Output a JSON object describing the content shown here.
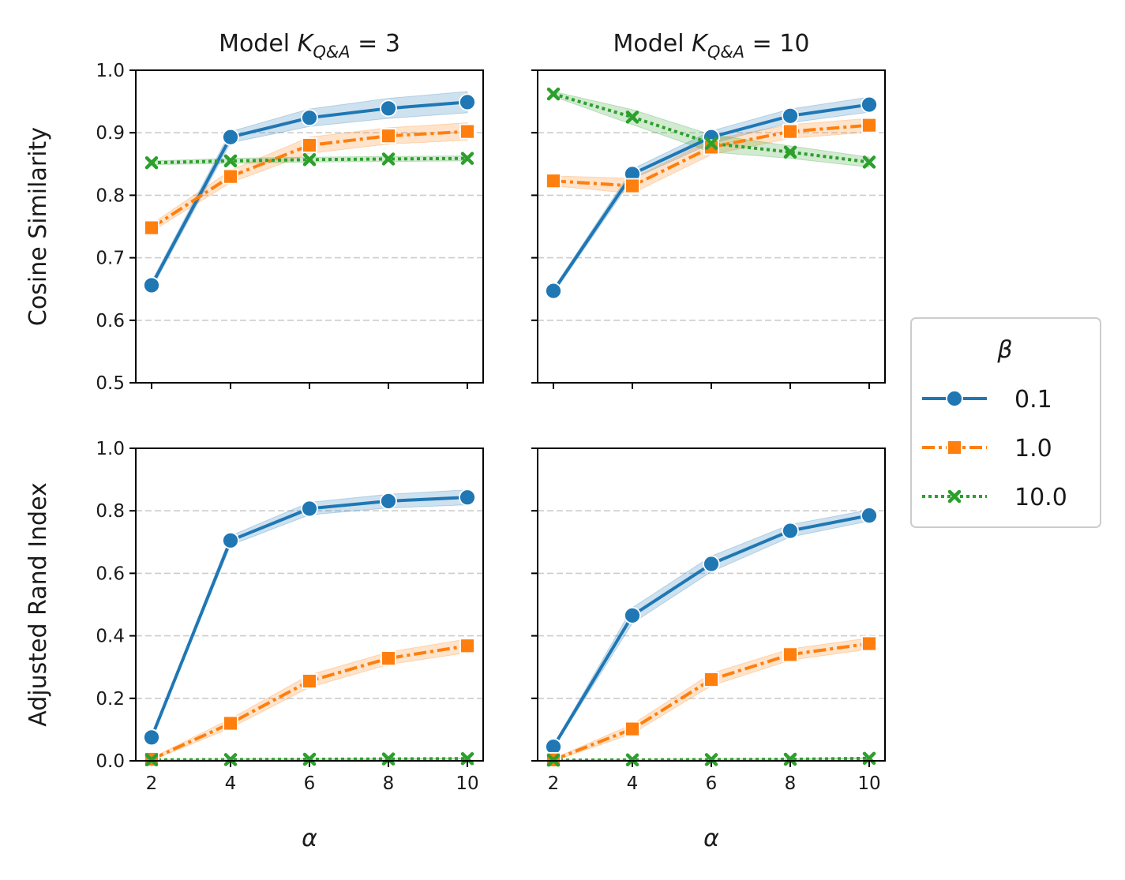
{
  "chart_data": [
    {
      "type": "line",
      "title_prefix": "Model ",
      "title_math": "K",
      "title_sub": "Q&A",
      "title_suffix": " = 3",
      "xlabel": "",
      "ylabel": "Cosine Similarity",
      "x": [
        2,
        4,
        6,
        8,
        10
      ],
      "xlim": [
        1.6,
        10.4
      ],
      "ylim": [
        0.5,
        1.0
      ],
      "yticks": [
        "0.5",
        "0.6",
        "0.7",
        "0.8",
        "0.9",
        "1.0"
      ],
      "xticks": [],
      "grid": "y-dashed",
      "series": [
        {
          "name": "0.1",
          "values": [
            0.656,
            0.893,
            0.924,
            0.939,
            0.949
          ],
          "band": [
            0.006,
            0.009,
            0.014,
            0.016,
            0.017
          ]
        },
        {
          "name": "1.0",
          "values": [
            0.748,
            0.83,
            0.88,
            0.895,
            0.902
          ],
          "band": [
            0.006,
            0.01,
            0.013,
            0.013,
            0.014
          ]
        },
        {
          "name": "10.0",
          "values": [
            0.852,
            0.855,
            0.857,
            0.858,
            0.859
          ],
          "band": [
            0.003,
            0.004,
            0.004,
            0.004,
            0.004
          ]
        }
      ]
    },
    {
      "type": "line",
      "title_prefix": "Model ",
      "title_math": "K",
      "title_sub": "Q&A",
      "title_suffix": " = 10",
      "xlabel": "",
      "ylabel": "",
      "x": [
        2,
        4,
        6,
        8,
        10
      ],
      "xlim": [
        1.6,
        10.4
      ],
      "ylim": [
        0.5,
        1.0
      ],
      "yticks": [],
      "xticks": [],
      "grid": "y-dashed",
      "series": [
        {
          "name": "0.1",
          "values": [
            0.647,
            0.834,
            0.893,
            0.927,
            0.945
          ],
          "band": [
            0.004,
            0.008,
            0.01,
            0.011,
            0.012
          ]
        },
        {
          "name": "1.0",
          "values": [
            0.823,
            0.815,
            0.877,
            0.902,
            0.912
          ],
          "band": [
            0.008,
            0.012,
            0.012,
            0.011,
            0.011
          ]
        },
        {
          "name": "10.0",
          "values": [
            0.962,
            0.925,
            0.883,
            0.869,
            0.853
          ],
          "band": [
            0.004,
            0.012,
            0.014,
            0.01,
            0.008
          ]
        }
      ]
    },
    {
      "type": "line",
      "title_prefix": "",
      "title_math": "",
      "title_sub": "",
      "title_suffix": "",
      "xlabel": "α",
      "ylabel": "Adjusted Rand Index",
      "x": [
        2,
        4,
        6,
        8,
        10
      ],
      "xlim": [
        1.6,
        10.4
      ],
      "ylim": [
        0.0,
        1.0
      ],
      "yticks": [
        "0.0",
        "0.2",
        "0.4",
        "0.6",
        "0.8",
        "1.0"
      ],
      "xticks": [
        "2",
        "4",
        "6",
        "8",
        "10"
      ],
      "grid": "y-dashed",
      "series": [
        {
          "name": "0.1",
          "values": [
            0.075,
            0.705,
            0.807,
            0.831,
            0.843
          ],
          "band": [
            0.005,
            0.015,
            0.02,
            0.022,
            0.024
          ]
        },
        {
          "name": "1.0",
          "values": [
            0.005,
            0.12,
            0.255,
            0.328,
            0.368
          ],
          "band": [
            0.004,
            0.015,
            0.02,
            0.02,
            0.022
          ]
        },
        {
          "name": "10.0",
          "values": [
            0.003,
            0.004,
            0.005,
            0.006,
            0.007
          ],
          "band": [
            0.002,
            0.002,
            0.002,
            0.002,
            0.002
          ]
        }
      ]
    },
    {
      "type": "line",
      "title_prefix": "",
      "title_math": "",
      "title_sub": "",
      "title_suffix": "",
      "xlabel": "α",
      "ylabel": "",
      "x": [
        2,
        4,
        6,
        8,
        10
      ],
      "xlim": [
        1.6,
        10.4
      ],
      "ylim": [
        0.0,
        1.0
      ],
      "yticks": [],
      "xticks": [
        "2",
        "4",
        "6",
        "8",
        "10"
      ],
      "grid": "y-dashed",
      "series": [
        {
          "name": "0.1",
          "values": [
            0.045,
            0.465,
            0.63,
            0.736,
            0.785
          ],
          "band": [
            0.005,
            0.025,
            0.025,
            0.02,
            0.018
          ]
        },
        {
          "name": "1.0",
          "values": [
            0.003,
            0.102,
            0.26,
            0.34,
            0.375
          ],
          "band": [
            0.004,
            0.015,
            0.02,
            0.018,
            0.018
          ]
        },
        {
          "name": "10.0",
          "values": [
            0.002,
            0.003,
            0.004,
            0.005,
            0.008
          ],
          "band": [
            0.002,
            0.002,
            0.002,
            0.002,
            0.002
          ]
        }
      ]
    }
  ],
  "legend": {
    "title": "β",
    "placement": "right-center",
    "entries": [
      {
        "label": "0.1",
        "color": "#1f77b4",
        "marker": "circle",
        "linestyle": "solid"
      },
      {
        "label": "1.0",
        "color": "#ff7f0e",
        "marker": "square",
        "linestyle": "dashed"
      },
      {
        "label": "10.0",
        "color": "#2ca02c",
        "marker": "x",
        "linestyle": "dotted"
      }
    ]
  }
}
